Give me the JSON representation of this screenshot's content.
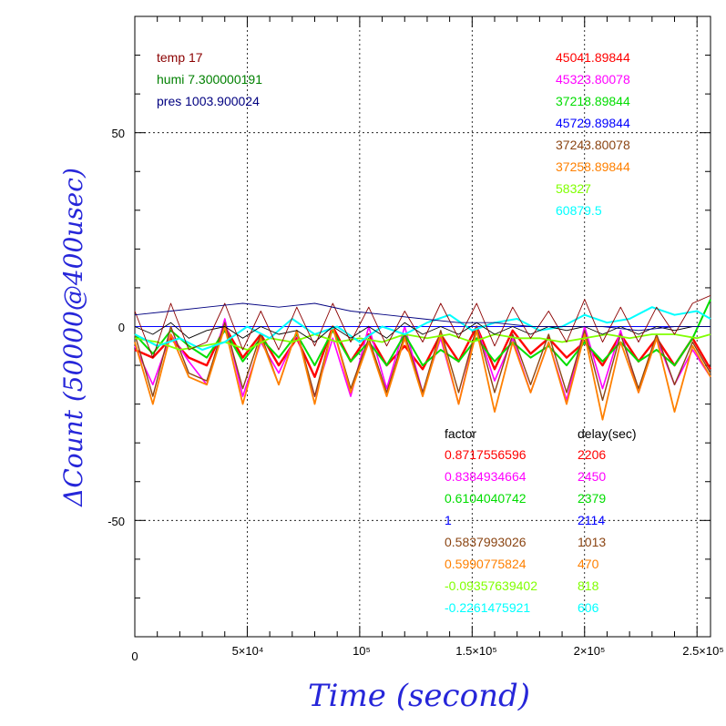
{
  "chart_data": {
    "type": "line",
    "xlabel": "Time (second)",
    "ylabel": "ΔCount (50000@400usec)",
    "xlim": [
      0,
      256000
    ],
    "ylim": [
      -80,
      80
    ],
    "grid": true,
    "x_tick_labels": [
      "0",
      "5×10⁴",
      "10⁵",
      "1.5×10⁵",
      "2×10⁵",
      "2.5×10⁵"
    ],
    "y_tick_labels": [
      "50",
      "0",
      "-50"
    ],
    "env_labels": [
      {
        "text": "temp 17",
        "color": "#8b0000"
      },
      {
        "text": "humi 7.300000191",
        "color": "#008000"
      },
      {
        "text": "pres 1003.900024",
        "color": "#000080"
      }
    ],
    "series_values": [
      {
        "text": "45041.89844",
        "color": "#ff0000"
      },
      {
        "text": "45323.80078",
        "color": "#ff00ff"
      },
      {
        "text": "37218.89844",
        "color": "#00dd00"
      },
      {
        "text": "45729.89844",
        "color": "#0000ff"
      },
      {
        "text": "37243.80078",
        "color": "#8b4513"
      },
      {
        "text": "37258.89844",
        "color": "#ff8000"
      },
      {
        "text": "58327",
        "color": "#80ff00"
      },
      {
        "text": "60879.5",
        "color": "#00ffff"
      }
    ],
    "table": {
      "header_factor": "factor",
      "header_delay": "delay(sec)",
      "rows": [
        {
          "factor": "0.8717556596",
          "delay": "2206",
          "color": "#ff0000"
        },
        {
          "factor": "0.8384934664",
          "delay": "2450",
          "color": "#ff00ff"
        },
        {
          "factor": "0.6104040742",
          "delay": "2379",
          "color": "#00dd00"
        },
        {
          "factor": "1",
          "delay": "2114",
          "color": "#0000ff"
        },
        {
          "factor": "0.5837993026",
          "delay": "1013",
          "color": "#8b4513"
        },
        {
          "factor": "0.5990775824",
          "delay": "470",
          "color": "#ff8000"
        },
        {
          "factor": "-0.09357639402",
          "delay": "818",
          "color": "#80ff00"
        },
        {
          "factor": "-0.2261475921",
          "delay": "606",
          "color": "#00ffff"
        }
      ]
    },
    "series": [
      {
        "color": "#ff0000",
        "width": 2.4,
        "x": [
          0,
          8000,
          16000,
          24000,
          32000,
          40000,
          48000,
          56000,
          64000,
          72000,
          80000,
          88000,
          96000,
          104000,
          112000,
          120000,
          128000,
          136000,
          144000,
          152000,
          160000,
          168000,
          176000,
          184000,
          192000,
          200000,
          208000,
          216000,
          224000,
          232000,
          240000,
          248000,
          256000
        ],
        "y": [
          -6,
          -8,
          -3,
          -8,
          -10,
          0,
          -8,
          -2,
          -10,
          -3,
          -13,
          0,
          -9,
          -2,
          -10,
          -5,
          -11,
          -2,
          -9,
          0,
          -11,
          -1,
          -7,
          -3,
          -8,
          -4,
          -10,
          -2,
          -9,
          -3,
          -10,
          -3,
          -11
        ]
      },
      {
        "color": "#ff00ff",
        "width": 1.6,
        "x": [
          0,
          8000,
          16000,
          24000,
          32000,
          40000,
          48000,
          56000,
          64000,
          72000,
          80000,
          88000,
          96000,
          104000,
          112000,
          120000,
          128000,
          136000,
          144000,
          152000,
          160000,
          168000,
          176000,
          184000,
          192000,
          200000,
          208000,
          216000,
          224000,
          232000,
          240000,
          248000,
          256000
        ],
        "y": [
          -5,
          -15,
          -2,
          -9,
          -15,
          2,
          -18,
          -4,
          -12,
          -2,
          -18,
          -3,
          -18,
          0,
          -16,
          0,
          -17,
          -3,
          -20,
          0,
          -14,
          -3,
          -17,
          -4,
          -19,
          0,
          -16,
          -1,
          -17,
          -3,
          -15,
          -6,
          -13
        ]
      },
      {
        "color": "#00dd00",
        "width": 2.0,
        "x": [
          0,
          8000,
          16000,
          24000,
          32000,
          40000,
          48000,
          56000,
          64000,
          72000,
          80000,
          88000,
          96000,
          104000,
          112000,
          120000,
          128000,
          136000,
          144000,
          152000,
          160000,
          168000,
          176000,
          184000,
          192000,
          200000,
          208000,
          216000,
          224000,
          232000,
          240000,
          248000,
          256000
        ],
        "y": [
          -2,
          -7,
          -1,
          -5,
          -8,
          -1,
          -9,
          -3,
          -8,
          -2,
          -10,
          -1,
          -9,
          -4,
          -10,
          -2,
          -10,
          -6,
          -9,
          -3,
          -9,
          -4,
          -8,
          -5,
          -10,
          -4,
          -9,
          -4,
          -9,
          -6,
          -10,
          -3,
          7
        ]
      },
      {
        "color": "#0000ff",
        "width": 1.0,
        "x": [
          0,
          32000,
          64000,
          96000,
          128000,
          160000,
          192000,
          224000,
          256000
        ],
        "y": [
          0,
          0,
          0,
          0,
          0,
          0,
          0,
          0,
          0
        ]
      },
      {
        "color": "#8b4513",
        "width": 1.4,
        "x": [
          0,
          8000,
          16000,
          24000,
          32000,
          40000,
          48000,
          56000,
          64000,
          72000,
          80000,
          88000,
          96000,
          104000,
          112000,
          120000,
          128000,
          136000,
          144000,
          152000,
          160000,
          168000,
          176000,
          184000,
          192000,
          200000,
          208000,
          216000,
          224000,
          232000,
          240000,
          248000,
          256000
        ],
        "y": [
          -2,
          -18,
          0,
          -12,
          -14,
          1,
          -16,
          -2,
          -15,
          -1,
          -18,
          0,
          -16,
          -3,
          -17,
          -2,
          -17,
          -1,
          -17,
          0,
          -17,
          -2,
          -15,
          -2,
          -17,
          -1,
          -19,
          -2,
          -16,
          -2,
          -15,
          -4,
          -12
        ]
      },
      {
        "color": "#ff8000",
        "width": 1.8,
        "x": [
          0,
          8000,
          16000,
          24000,
          32000,
          40000,
          48000,
          56000,
          64000,
          72000,
          80000,
          88000,
          96000,
          104000,
          112000,
          120000,
          128000,
          136000,
          144000,
          152000,
          160000,
          168000,
          176000,
          184000,
          192000,
          200000,
          208000,
          216000,
          224000,
          232000,
          240000,
          248000,
          256000
        ],
        "y": [
          -4,
          -20,
          -2,
          -13,
          -15,
          0,
          -20,
          -3,
          -15,
          -1,
          -20,
          0,
          -17,
          -4,
          -18,
          -3,
          -18,
          -2,
          -20,
          -1,
          -22,
          -4,
          -17,
          -4,
          -20,
          -2,
          -24,
          -4,
          -17,
          -3,
          -22,
          -5,
          -13
        ]
      },
      {
        "color": "#80ff00",
        "width": 1.8,
        "x": [
          0,
          10000,
          20000,
          30000,
          40000,
          50000,
          60000,
          70000,
          80000,
          90000,
          100000,
          110000,
          120000,
          130000,
          140000,
          150000,
          160000,
          170000,
          180000,
          190000,
          200000,
          210000,
          220000,
          230000,
          240000,
          250000,
          256000
        ],
        "y": [
          -3,
          -4,
          -6,
          -5,
          -4,
          -6,
          -3,
          -4,
          -2,
          -4,
          -3,
          -4,
          -2,
          -3,
          -2,
          -4,
          -2,
          -3,
          -3,
          -4,
          -3,
          -2,
          -3,
          -2,
          -2,
          -3,
          -2
        ]
      },
      {
        "color": "#00ffff",
        "width": 2.0,
        "x": [
          0,
          10000,
          20000,
          30000,
          40000,
          50000,
          60000,
          70000,
          80000,
          90000,
          100000,
          110000,
          120000,
          130000,
          140000,
          150000,
          160000,
          170000,
          180000,
          190000,
          200000,
          210000,
          220000,
          230000,
          240000,
          250000,
          256000
        ],
        "y": [
          -2,
          -5,
          -3,
          -6,
          -4,
          0,
          -3,
          2,
          -2,
          0,
          -4,
          0,
          -2,
          1,
          3,
          -1,
          1,
          2,
          -1,
          0,
          3,
          1,
          2,
          5,
          3,
          4,
          2
        ]
      },
      {
        "color": "#000000",
        "width": 0.9,
        "x": [
          0,
          8000,
          16000,
          24000,
          32000,
          40000,
          48000,
          56000,
          64000,
          72000,
          80000,
          88000,
          96000,
          104000,
          112000,
          120000,
          128000,
          136000,
          144000,
          152000,
          160000,
          168000,
          176000,
          184000,
          192000,
          200000,
          208000,
          216000,
          224000,
          232000,
          240000,
          248000,
          256000
        ],
        "y": [
          0,
          -2,
          1,
          -3,
          -1,
          0,
          -3,
          0,
          -2,
          -1,
          -4,
          0,
          -3,
          0,
          -3,
          1,
          -2,
          0,
          -2,
          1,
          -2,
          0,
          -2,
          0,
          -1,
          0,
          -2,
          0,
          -2,
          0,
          -1,
          0,
          0
        ]
      },
      {
        "color": "#8b0000",
        "width": 0.9,
        "x": [
          0,
          8000,
          16000,
          24000,
          32000,
          40000,
          48000,
          56000,
          64000,
          72000,
          80000,
          88000,
          96000,
          104000,
          112000,
          120000,
          128000,
          136000,
          144000,
          152000,
          160000,
          168000,
          176000,
          184000,
          192000,
          200000,
          208000,
          216000,
          224000,
          232000,
          240000,
          248000,
          256000
        ],
        "y": [
          4,
          -8,
          6,
          -6,
          -4,
          6,
          -6,
          4,
          -6,
          5,
          -5,
          6,
          -4,
          5,
          -5,
          4,
          -4,
          6,
          -3,
          6,
          -5,
          5,
          -3,
          4,
          -4,
          7,
          -4,
          5,
          -4,
          5,
          -2,
          6,
          8
        ]
      },
      {
        "color": "#000080",
        "width": 0.9,
        "x": [
          0,
          16000,
          32000,
          48000,
          64000,
          80000,
          96000,
          112000,
          128000,
          144000,
          160000,
          176000,
          192000,
          208000,
          224000,
          240000,
          256000
        ],
        "y": [
          3,
          4,
          5,
          6,
          5,
          6,
          4,
          3,
          2,
          1,
          1,
          0,
          0,
          0,
          -1,
          0,
          0
        ]
      }
    ]
  }
}
